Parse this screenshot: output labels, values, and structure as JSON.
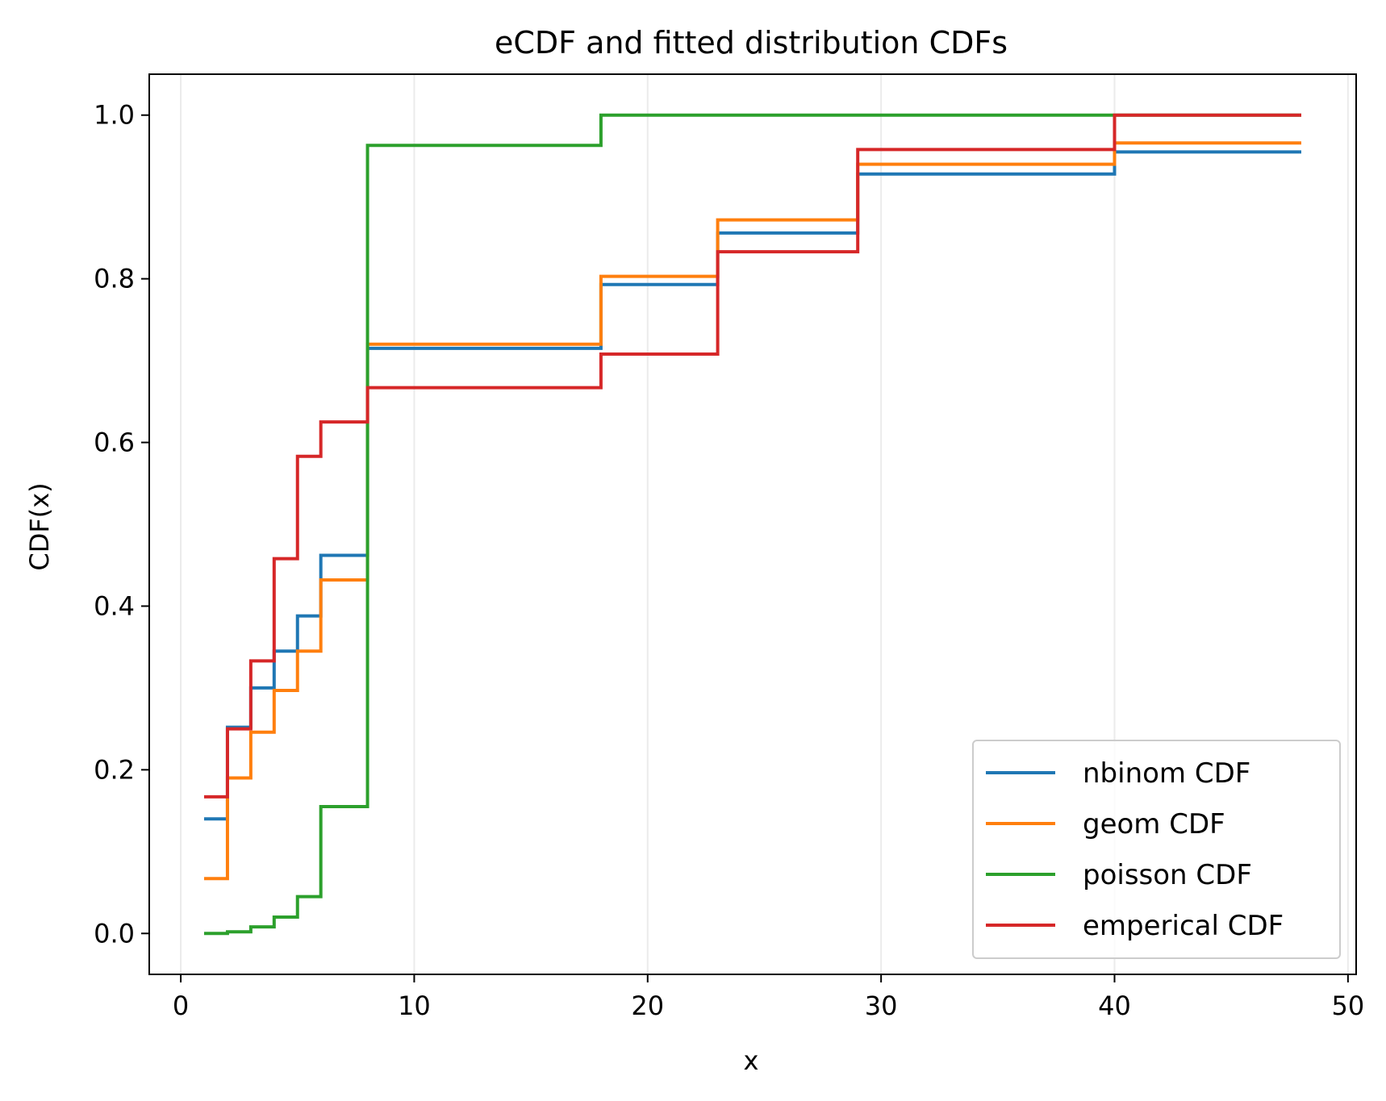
{
  "chart_data": {
    "type": "line",
    "step": "post",
    "title": "eCDF and fitted distribution CDFs",
    "xlabel": "x",
    "ylabel": "CDF(x)",
    "xlim": [
      -1.35,
      50.35
    ],
    "ylim": [
      -0.05,
      1.05
    ],
    "xticks": [
      0,
      10,
      20,
      30,
      40,
      50
    ],
    "xtick_labels": [
      "0",
      "10",
      "20",
      "30",
      "40",
      "50"
    ],
    "yticks": [
      0.0,
      0.2,
      0.4,
      0.6,
      0.8,
      1.0
    ],
    "ytick_labels": [
      "0.0",
      "0.2",
      "0.4",
      "0.6",
      "0.8",
      "1.0"
    ],
    "grid": "x-axis (light)",
    "legend_position": "lower right",
    "x": [
      1,
      2,
      3,
      4,
      5,
      6,
      8,
      18,
      23,
      29,
      40,
      48
    ],
    "series": [
      {
        "name": "nbinom CDF",
        "color": "#1f77b4",
        "values": [
          0.14,
          0.252,
          0.3,
          0.345,
          0.388,
          0.462,
          0.715,
          0.793,
          0.856,
          0.928,
          0.955,
          0.955
        ]
      },
      {
        "name": "geom CDF",
        "color": "#ff7f0e",
        "values": [
          0.067,
          0.19,
          0.246,
          0.297,
          0.345,
          0.432,
          0.72,
          0.803,
          0.872,
          0.94,
          0.966,
          0.966
        ]
      },
      {
        "name": "poisson CDF",
        "color": "#2ca02c",
        "values": [
          0.0,
          0.002,
          0.008,
          0.02,
          0.045,
          0.155,
          0.963,
          1.0,
          1.0,
          1.0,
          1.0,
          1.0
        ]
      },
      {
        "name": "emperical CDF",
        "color": "#d62728",
        "values": [
          0.167,
          0.25,
          0.333,
          0.458,
          0.583,
          0.625,
          0.667,
          0.708,
          0.833,
          0.958,
          1.0,
          1.0
        ]
      }
    ]
  }
}
